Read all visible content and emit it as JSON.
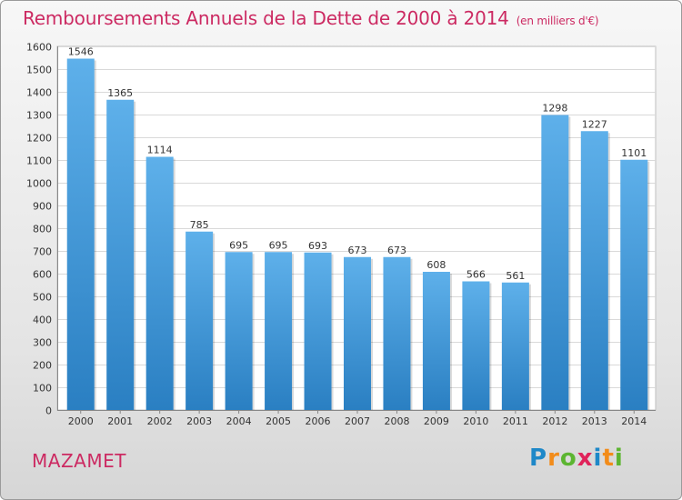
{
  "header": {
    "title": "Remboursements Annuels de la Dette de 2000 à 2014",
    "subtitle": "(en milliers d'€)"
  },
  "footer": {
    "town": "MAZAMET",
    "logo": [
      "P",
      "r",
      "o",
      "x",
      "i",
      "t",
      "i"
    ],
    "logo_colors": [
      "#1e88c8",
      "#f28c1a",
      "#5cb531",
      "#e0235a",
      "#1e88c8",
      "#f28c1a",
      "#5cb531"
    ]
  },
  "chart_data": {
    "type": "bar",
    "title": "Remboursements Annuels de la Dette de 2000 à 2014",
    "subtitle": "(en milliers d'€)",
    "xlabel": "",
    "ylabel": "",
    "categories": [
      "2000",
      "2001",
      "2002",
      "2003",
      "2004",
      "2005",
      "2006",
      "2007",
      "2008",
      "2009",
      "2010",
      "2011",
      "2012",
      "2013",
      "2014"
    ],
    "values": [
      1546,
      1365,
      1114,
      785,
      695,
      695,
      693,
      673,
      673,
      608,
      566,
      561,
      1298,
      1227,
      1101
    ],
    "ylim": [
      0,
      1600
    ],
    "ytick_step": 100,
    "grid": true,
    "colors": {
      "bar_top": "#5eb0ea",
      "bar_bottom": "#2a7fc2",
      "text": "#cc2a62"
    }
  }
}
